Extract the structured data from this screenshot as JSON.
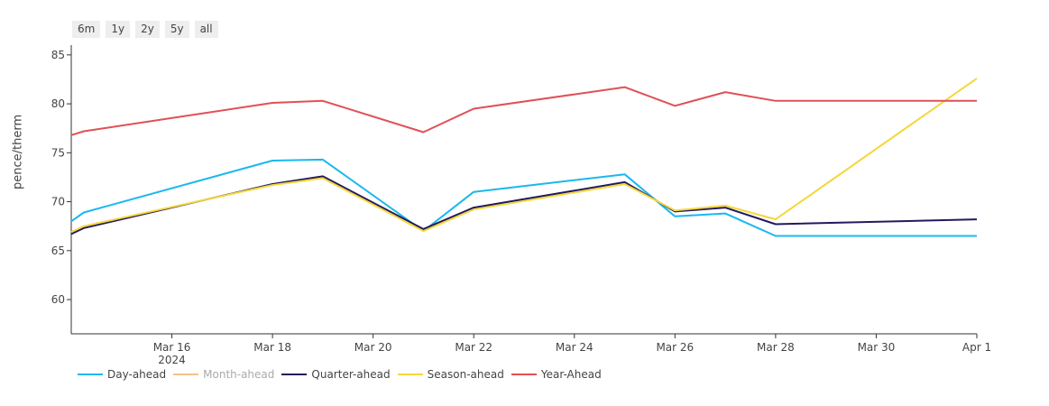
{
  "range_buttons": [
    "6m",
    "1y",
    "2y",
    "5y",
    "all"
  ],
  "chart_data": {
    "type": "line",
    "ylabel": "pence/therm",
    "ylim": [
      56.5,
      86
    ],
    "yticks": [
      60,
      65,
      70,
      75,
      80,
      85
    ],
    "xlim": [
      "2024-03-14",
      "2024-04-01"
    ],
    "xticks": [
      {
        "date": "2024-03-16",
        "label": "Mar 16",
        "sublabel": "2024"
      },
      {
        "date": "2024-03-18",
        "label": "Mar 18"
      },
      {
        "date": "2024-03-20",
        "label": "Mar 20"
      },
      {
        "date": "2024-03-22",
        "label": "Mar 22"
      },
      {
        "date": "2024-03-24",
        "label": "Mar 24"
      },
      {
        "date": "2024-03-26",
        "label": "Mar 26"
      },
      {
        "date": "2024-03-28",
        "label": "Mar 28"
      },
      {
        "date": "2024-03-30",
        "label": "Mar 30"
      },
      {
        "date": "2024-04-01",
        "label": "Apr 1"
      }
    ],
    "series": [
      {
        "name": "Day-ahead",
        "color": "#1ab8ef",
        "visible": true,
        "x": [
          "2024-03-14",
          "2024-03-14T06:00",
          "2024-03-18",
          "2024-03-19",
          "2024-03-21",
          "2024-03-22",
          "2024-03-25",
          "2024-03-26",
          "2024-03-27",
          "2024-03-28",
          "2024-04-01"
        ],
        "y": [
          68.0,
          68.9,
          74.2,
          74.3,
          67.0,
          71.0,
          72.8,
          68.5,
          68.8,
          66.5,
          66.5
        ]
      },
      {
        "name": "Month-ahead",
        "color": "#f5c289",
        "visible": false,
        "x": [],
        "y": []
      },
      {
        "name": "Quarter-ahead",
        "color": "#221a5c",
        "visible": true,
        "x": [
          "2024-03-14",
          "2024-03-14T06:00",
          "2024-03-18",
          "2024-03-19",
          "2024-03-21",
          "2024-03-22",
          "2024-03-25",
          "2024-03-26",
          "2024-03-27",
          "2024-03-28",
          "2024-04-01"
        ],
        "y": [
          66.7,
          67.3,
          71.8,
          72.6,
          67.2,
          69.4,
          72.0,
          69.0,
          69.4,
          67.7,
          68.2
        ]
      },
      {
        "name": "Season-ahead",
        "color": "#f5d73b",
        "visible": true,
        "x": [
          "2024-03-14",
          "2024-03-14T06:00",
          "2024-03-18",
          "2024-03-19",
          "2024-03-21",
          "2024-03-22",
          "2024-03-25",
          "2024-03-26",
          "2024-03-27",
          "2024-03-28",
          "2024-04-01"
        ],
        "y": [
          66.9,
          67.5,
          71.7,
          72.4,
          67.0,
          69.2,
          71.8,
          69.1,
          69.6,
          68.2,
          82.6
        ]
      },
      {
        "name": "Year-Ahead",
        "color": "#e05055",
        "visible": true,
        "x": [
          "2024-03-14",
          "2024-03-14T06:00",
          "2024-03-18",
          "2024-03-19",
          "2024-03-21",
          "2024-03-22",
          "2024-03-25",
          "2024-03-26",
          "2024-03-27",
          "2024-03-28",
          "2024-04-01"
        ],
        "y": [
          76.8,
          77.2,
          80.1,
          80.3,
          77.1,
          79.5,
          81.7,
          79.8,
          81.2,
          80.3,
          80.3
        ]
      }
    ]
  }
}
